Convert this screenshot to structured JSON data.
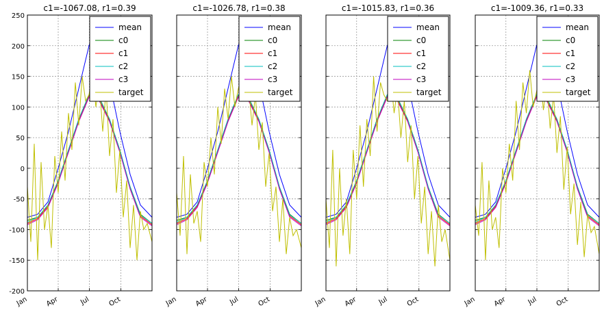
{
  "chart_data": [
    {
      "type": "line",
      "title": "c1=-1067.08, r1=0.39",
      "xticks": [
        "Jan",
        "Apr",
        "Jul",
        "Oct"
      ],
      "yticks": [
        "250",
        "200",
        "150",
        "100",
        "50",
        "0",
        "-50",
        "-100",
        "-150",
        "-200"
      ],
      "ylim": [
        -200,
        250
      ],
      "grid": true,
      "legend_position": "top-right",
      "series": [
        {
          "name": "mean",
          "color": "#0000ff",
          "x": [
            0,
            30,
            60,
            90,
            120,
            150,
            180,
            195,
            210,
            240,
            270,
            300,
            330,
            364
          ],
          "y": [
            -80,
            -75,
            -55,
            0,
            60,
            130,
            200,
            225,
            200,
            140,
            60,
            -10,
            -60,
            -80
          ]
        },
        {
          "name": "c0",
          "color": "#008000",
          "x": [
            0,
            30,
            60,
            90,
            120,
            150,
            180,
            210,
            240,
            270,
            300,
            330,
            364
          ],
          "y": [
            -85,
            -80,
            -60,
            -20,
            30,
            80,
            120,
            115,
            80,
            30,
            -30,
            -75,
            -90
          ]
        },
        {
          "name": "c1",
          "color": "#ff0000",
          "x": [
            0,
            30,
            60,
            90,
            120,
            150,
            180,
            210,
            240,
            270,
            300,
            330,
            364
          ],
          "y": [
            -90,
            -82,
            -62,
            -22,
            28,
            78,
            118,
            112,
            78,
            28,
            -32,
            -78,
            -92
          ]
        },
        {
          "name": "c2",
          "color": "#00bfbf",
          "x": [
            0,
            30,
            60,
            90,
            120,
            150,
            180,
            210,
            240,
            270,
            300,
            330,
            364
          ],
          "y": [
            -88,
            -80,
            -60,
            -20,
            30,
            80,
            120,
            114,
            80,
            30,
            -30,
            -76,
            -90
          ]
        },
        {
          "name": "c3",
          "color": "#bf00bf",
          "x": [
            0,
            30,
            60,
            90,
            120,
            150,
            180,
            210,
            240,
            270,
            300,
            330,
            364
          ],
          "y": [
            -92,
            -84,
            -64,
            -24,
            26,
            76,
            116,
            110,
            76,
            26,
            -34,
            -80,
            -94
          ]
        },
        {
          "name": "target",
          "color": "#bfbf00",
          "x": [
            0,
            10,
            20,
            30,
            40,
            50,
            60,
            70,
            80,
            90,
            100,
            110,
            120,
            130,
            140,
            150,
            160,
            170,
            180,
            190,
            200,
            210,
            220,
            230,
            240,
            250,
            260,
            270,
            280,
            290,
            300,
            310,
            320,
            330,
            340,
            350,
            364
          ],
          "y": [
            -30,
            -120,
            40,
            -150,
            10,
            -100,
            -60,
            -130,
            20,
            -40,
            60,
            -20,
            90,
            30,
            140,
            70,
            150,
            110,
            120,
            160,
            100,
            140,
            60,
            130,
            20,
            80,
            -40,
            30,
            -80,
            -20,
            -130,
            -60,
            -150,
            -70,
            -100,
            -90,
            -120
          ]
        }
      ]
    },
    {
      "type": "line",
      "title": "c1=-1026.78, r1=0.38",
      "xticks": [
        "Jan",
        "Apr",
        "Jul",
        "Oct"
      ],
      "ylim": [
        -200,
        250
      ],
      "grid": true,
      "legend_position": "top-right",
      "series": [
        {
          "name": "mean",
          "color": "#0000ff",
          "x": [
            0,
            30,
            60,
            90,
            120,
            150,
            180,
            195,
            210,
            240,
            270,
            300,
            330,
            364
          ],
          "y": [
            -80,
            -75,
            -55,
            0,
            60,
            130,
            200,
            225,
            200,
            140,
            60,
            -10,
            -60,
            -80
          ]
        },
        {
          "name": "c0",
          "color": "#008000",
          "x": [
            0,
            30,
            60,
            90,
            120,
            150,
            180,
            210,
            240,
            270,
            300,
            330,
            364
          ],
          "y": [
            -85,
            -80,
            -60,
            -20,
            30,
            80,
            120,
            115,
            80,
            30,
            -30,
            -75,
            -90
          ]
        },
        {
          "name": "c1",
          "color": "#ff0000",
          "x": [
            0,
            30,
            60,
            90,
            120,
            150,
            180,
            210,
            240,
            270,
            300,
            330,
            364
          ],
          "y": [
            -90,
            -82,
            -62,
            -22,
            28,
            78,
            118,
            112,
            78,
            28,
            -32,
            -78,
            -92
          ]
        },
        {
          "name": "c2",
          "color": "#00bfbf",
          "x": [
            0,
            30,
            60,
            90,
            120,
            150,
            180,
            210,
            240,
            270,
            300,
            330,
            364
          ],
          "y": [
            -88,
            -80,
            -60,
            -20,
            30,
            80,
            120,
            114,
            80,
            30,
            -30,
            -76,
            -90
          ]
        },
        {
          "name": "c3",
          "color": "#bf00bf",
          "x": [
            0,
            30,
            60,
            90,
            120,
            150,
            180,
            210,
            240,
            270,
            300,
            330,
            364
          ],
          "y": [
            -92,
            -84,
            -64,
            -24,
            26,
            76,
            116,
            110,
            76,
            26,
            -34,
            -80,
            -94
          ]
        },
        {
          "name": "target",
          "color": "#bfbf00",
          "x": [
            0,
            10,
            20,
            30,
            40,
            50,
            60,
            70,
            80,
            90,
            100,
            110,
            120,
            130,
            140,
            150,
            160,
            170,
            180,
            190,
            200,
            210,
            220,
            230,
            240,
            250,
            260,
            270,
            280,
            290,
            300,
            310,
            320,
            330,
            340,
            350,
            364
          ],
          "y": [
            -40,
            -110,
            20,
            -140,
            -10,
            -90,
            -70,
            -120,
            10,
            -30,
            50,
            -10,
            100,
            40,
            130,
            80,
            150,
            100,
            130,
            150,
            110,
            135,
            70,
            120,
            30,
            75,
            -30,
            25,
            -70,
            -30,
            -120,
            -50,
            -140,
            -80,
            -110,
            -100,
            -130
          ]
        }
      ]
    },
    {
      "type": "line",
      "title": "c1=-1015.83, r1=0.36",
      "xticks": [
        "Jan",
        "Apr",
        "Jul",
        "Oct"
      ],
      "ylim": [
        -200,
        250
      ],
      "grid": true,
      "legend_position": "top-right",
      "series": [
        {
          "name": "mean",
          "color": "#0000ff",
          "x": [
            0,
            30,
            60,
            90,
            120,
            150,
            180,
            195,
            210,
            240,
            270,
            300,
            330,
            364
          ],
          "y": [
            -80,
            -75,
            -55,
            0,
            60,
            130,
            200,
            225,
            200,
            140,
            60,
            -10,
            -60,
            -80
          ]
        },
        {
          "name": "c0",
          "color": "#008000",
          "x": [
            0,
            30,
            60,
            90,
            120,
            150,
            180,
            210,
            240,
            270,
            300,
            330,
            364
          ],
          "y": [
            -85,
            -80,
            -60,
            -20,
            30,
            80,
            120,
            115,
            80,
            30,
            -30,
            -75,
            -90
          ]
        },
        {
          "name": "c1",
          "color": "#ff0000",
          "x": [
            0,
            30,
            60,
            90,
            120,
            150,
            180,
            210,
            240,
            270,
            300,
            330,
            364
          ],
          "y": [
            -90,
            -82,
            -62,
            -22,
            28,
            78,
            118,
            112,
            78,
            28,
            -32,
            -78,
            -92
          ]
        },
        {
          "name": "c2",
          "color": "#00bfbf",
          "x": [
            0,
            30,
            60,
            90,
            120,
            150,
            180,
            210,
            240,
            270,
            300,
            330,
            364
          ],
          "y": [
            -88,
            -80,
            -60,
            -20,
            30,
            80,
            120,
            114,
            80,
            30,
            -30,
            -76,
            -90
          ]
        },
        {
          "name": "c3",
          "color": "#bf00bf",
          "x": [
            0,
            30,
            60,
            90,
            120,
            150,
            180,
            210,
            240,
            270,
            300,
            330,
            364
          ],
          "y": [
            -92,
            -84,
            -64,
            -24,
            26,
            76,
            116,
            110,
            76,
            26,
            -34,
            -80,
            -94
          ]
        },
        {
          "name": "target",
          "color": "#bfbf00",
          "x": [
            0,
            10,
            20,
            30,
            40,
            50,
            60,
            70,
            80,
            90,
            100,
            110,
            120,
            130,
            140,
            150,
            160,
            170,
            180,
            190,
            200,
            210,
            220,
            230,
            240,
            250,
            260,
            270,
            280,
            290,
            300,
            310,
            320,
            330,
            340,
            350,
            364
          ],
          "y": [
            -50,
            -130,
            30,
            -160,
            0,
            -110,
            -50,
            -140,
            30,
            -50,
            70,
            -30,
            80,
            20,
            150,
            60,
            140,
            120,
            110,
            150,
            90,
            130,
            50,
            110,
            10,
            70,
            -50,
            20,
            -90,
            -30,
            -140,
            -70,
            -160,
            -60,
            -120,
            -100,
            -150
          ]
        }
      ]
    },
    {
      "type": "line",
      "title": "c1=-1009.36, r1=0.33",
      "xticks": [
        "Jan",
        "Apr",
        "Jul",
        "Oct"
      ],
      "ylim": [
        -200,
        250
      ],
      "grid": true,
      "legend_position": "top-right",
      "series": [
        {
          "name": "mean",
          "color": "#0000ff",
          "x": [
            0,
            30,
            60,
            90,
            120,
            150,
            180,
            195,
            210,
            240,
            270,
            300,
            330,
            364
          ],
          "y": [
            -80,
            -75,
            -55,
            0,
            60,
            130,
            200,
            225,
            200,
            140,
            60,
            -10,
            -60,
            -80
          ]
        },
        {
          "name": "c0",
          "color": "#008000",
          "x": [
            0,
            30,
            60,
            90,
            120,
            150,
            180,
            210,
            240,
            270,
            300,
            330,
            364
          ],
          "y": [
            -85,
            -80,
            -60,
            -20,
            30,
            80,
            120,
            115,
            80,
            30,
            -30,
            -75,
            -90
          ]
        },
        {
          "name": "c1",
          "color": "#ff0000",
          "x": [
            0,
            30,
            60,
            90,
            120,
            150,
            180,
            210,
            240,
            270,
            300,
            330,
            364
          ],
          "y": [
            -90,
            -82,
            -62,
            -22,
            28,
            78,
            118,
            112,
            78,
            28,
            -32,
            -78,
            -92
          ]
        },
        {
          "name": "c2",
          "color": "#00bfbf",
          "x": [
            0,
            30,
            60,
            90,
            120,
            150,
            180,
            210,
            240,
            270,
            300,
            330,
            364
          ],
          "y": [
            -88,
            -80,
            -60,
            -20,
            30,
            80,
            120,
            114,
            80,
            30,
            -30,
            -76,
            -90
          ]
        },
        {
          "name": "c3",
          "color": "#bf00bf",
          "x": [
            0,
            30,
            60,
            90,
            120,
            150,
            180,
            210,
            240,
            270,
            300,
            330,
            364
          ],
          "y": [
            -92,
            -84,
            -64,
            -24,
            26,
            76,
            116,
            110,
            76,
            26,
            -34,
            -80,
            -94
          ]
        },
        {
          "name": "target",
          "color": "#bfbf00",
          "x": [
            0,
            10,
            20,
            30,
            40,
            50,
            60,
            70,
            80,
            90,
            100,
            110,
            120,
            130,
            140,
            150,
            160,
            170,
            180,
            190,
            200,
            210,
            220,
            230,
            240,
            250,
            260,
            270,
            280,
            290,
            300,
            310,
            320,
            330,
            340,
            350,
            364
          ],
          "y": [
            -60,
            -110,
            10,
            -150,
            -20,
            -100,
            -80,
            -130,
            0,
            -40,
            40,
            -20,
            110,
            30,
            140,
            90,
            160,
            100,
            125,
            155,
            95,
            140,
            65,
            120,
            25,
            85,
            -35,
            35,
            -75,
            -25,
            -125,
            -55,
            -145,
            -75,
            -105,
            -95,
            -140
          ]
        }
      ]
    }
  ]
}
